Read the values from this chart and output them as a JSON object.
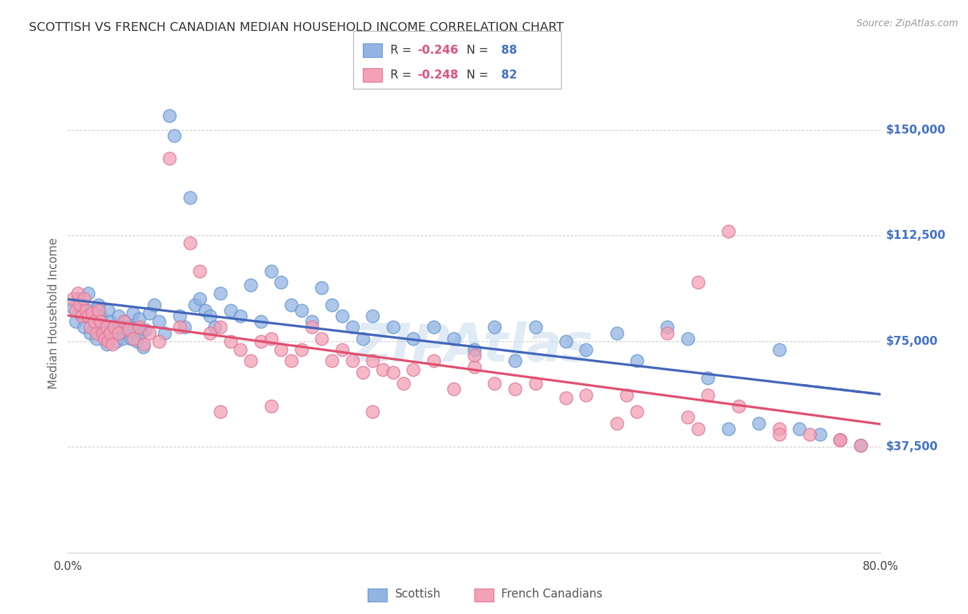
{
  "title": "SCOTTISH VS FRENCH CANADIAN MEDIAN HOUSEHOLD INCOME CORRELATION CHART",
  "source": "Source: ZipAtlas.com",
  "ylabel": "Median Household Income",
  "watermark": "ZIPAtlas",
  "x_min": 0.0,
  "x_max": 0.8,
  "y_min": 0,
  "y_max": 170000,
  "y_ticks": [
    37500,
    75000,
    112500,
    150000
  ],
  "y_tick_labels": [
    "$37,500",
    "$75,000",
    "$112,500",
    "$150,000"
  ],
  "x_ticks": [
    0.0,
    0.1,
    0.2,
    0.3,
    0.4,
    0.5,
    0.6,
    0.7,
    0.8
  ],
  "scottish_color": "#92b4e3",
  "scottish_edge": "#6699cc",
  "french_color": "#f4a0b5",
  "french_edge": "#dd7799",
  "scottish_R": "-0.246",
  "scottish_N": "88",
  "french_R": "-0.248",
  "french_N": "82",
  "legend_R_color": "#e05080",
  "legend_N_color": "#4472c4",
  "trend_blue_color": "#4466bb",
  "trend_pink_color": "#e05070",
  "scottish_x": [
    0.005,
    0.008,
    0.01,
    0.012,
    0.014,
    0.016,
    0.018,
    0.02,
    0.022,
    0.024,
    0.026,
    0.028,
    0.03,
    0.032,
    0.034,
    0.036,
    0.038,
    0.04,
    0.042,
    0.044,
    0.046,
    0.048,
    0.05,
    0.052,
    0.054,
    0.056,
    0.058,
    0.06,
    0.062,
    0.064,
    0.066,
    0.068,
    0.07,
    0.072,
    0.074,
    0.076,
    0.08,
    0.085,
    0.09,
    0.095,
    0.1,
    0.105,
    0.11,
    0.115,
    0.12,
    0.125,
    0.13,
    0.135,
    0.14,
    0.145,
    0.15,
    0.16,
    0.17,
    0.18,
    0.19,
    0.2,
    0.21,
    0.22,
    0.23,
    0.24,
    0.25,
    0.26,
    0.27,
    0.28,
    0.29,
    0.3,
    0.32,
    0.34,
    0.36,
    0.38,
    0.4,
    0.42,
    0.44,
    0.46,
    0.49,
    0.51,
    0.54,
    0.56,
    0.59,
    0.61,
    0.63,
    0.65,
    0.68,
    0.7,
    0.72,
    0.74,
    0.76,
    0.78
  ],
  "scottish_y": [
    87000,
    82000,
    90000,
    85000,
    88000,
    80000,
    84000,
    92000,
    78000,
    86000,
    82000,
    76000,
    88000,
    84000,
    80000,
    78000,
    74000,
    86000,
    82000,
    78000,
    80000,
    75000,
    84000,
    80000,
    76000,
    82000,
    78000,
    80000,
    76000,
    85000,
    80000,
    75000,
    83000,
    78000,
    73000,
    79000,
    85000,
    88000,
    82000,
    78000,
    155000,
    148000,
    84000,
    80000,
    126000,
    88000,
    90000,
    86000,
    84000,
    80000,
    92000,
    86000,
    84000,
    95000,
    82000,
    100000,
    96000,
    88000,
    86000,
    82000,
    94000,
    88000,
    84000,
    80000,
    76000,
    84000,
    80000,
    76000,
    80000,
    76000,
    72000,
    80000,
    68000,
    80000,
    75000,
    72000,
    78000,
    68000,
    80000,
    76000,
    62000,
    44000,
    46000,
    72000,
    44000,
    42000,
    40000,
    38000
  ],
  "french_x": [
    0.005,
    0.008,
    0.01,
    0.012,
    0.014,
    0.016,
    0.018,
    0.02,
    0.022,
    0.024,
    0.026,
    0.028,
    0.03,
    0.032,
    0.034,
    0.036,
    0.038,
    0.04,
    0.042,
    0.044,
    0.046,
    0.05,
    0.055,
    0.06,
    0.065,
    0.07,
    0.075,
    0.08,
    0.09,
    0.1,
    0.11,
    0.12,
    0.13,
    0.14,
    0.15,
    0.16,
    0.17,
    0.18,
    0.19,
    0.2,
    0.21,
    0.22,
    0.23,
    0.24,
    0.25,
    0.26,
    0.27,
    0.28,
    0.29,
    0.3,
    0.31,
    0.32,
    0.33,
    0.34,
    0.36,
    0.38,
    0.4,
    0.42,
    0.44,
    0.46,
    0.49,
    0.51,
    0.54,
    0.56,
    0.59,
    0.61,
    0.63,
    0.66,
    0.7,
    0.73,
    0.76,
    0.55,
    0.4,
    0.3,
    0.62,
    0.65,
    0.2,
    0.15,
    0.62,
    0.7,
    0.76,
    0.78
  ],
  "french_y": [
    90000,
    86000,
    92000,
    88000,
    84000,
    90000,
    86000,
    84000,
    80000,
    85000,
    82000,
    78000,
    86000,
    82000,
    78000,
    76000,
    80000,
    75000,
    78000,
    74000,
    80000,
    78000,
    82000,
    79000,
    76000,
    80000,
    74000,
    78000,
    75000,
    140000,
    80000,
    110000,
    100000,
    78000,
    80000,
    75000,
    72000,
    68000,
    75000,
    76000,
    72000,
    68000,
    72000,
    80000,
    76000,
    68000,
    72000,
    68000,
    64000,
    68000,
    65000,
    64000,
    60000,
    65000,
    68000,
    58000,
    66000,
    60000,
    58000,
    60000,
    55000,
    56000,
    46000,
    50000,
    78000,
    48000,
    56000,
    52000,
    44000,
    42000,
    40000,
    56000,
    70000,
    50000,
    96000,
    114000,
    52000,
    50000,
    44000,
    42000,
    40000,
    38000
  ]
}
